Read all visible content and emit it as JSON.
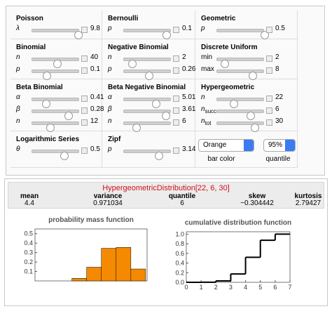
{
  "controls": [
    {
      "title": "Poisson",
      "params": [
        {
          "label": "λ",
          "value": "9.8"
        }
      ]
    },
    {
      "title": "Bernoulli",
      "params": [
        {
          "label": "p",
          "value": "0.1"
        }
      ]
    },
    {
      "title": "Geometric",
      "params": [
        {
          "label": "p",
          "value": "0.5"
        }
      ]
    },
    {
      "title": "Binomial",
      "params": [
        {
          "label": "n",
          "value": "40"
        },
        {
          "label": "p",
          "value": "0.1"
        }
      ]
    },
    {
      "title": "Negative Binomial",
      "params": [
        {
          "label": "n",
          "value": "2"
        },
        {
          "label": "p",
          "value": "0.26"
        }
      ]
    },
    {
      "title": "Discrete Uniform",
      "params": [
        {
          "label": "min",
          "value": "2"
        },
        {
          "label": "max",
          "value": "8"
        }
      ]
    },
    {
      "title": "Beta Binomial",
      "params": [
        {
          "label": "α",
          "value": "0.41"
        },
        {
          "label": "β",
          "value": "0.28"
        },
        {
          "label": "n",
          "value": "12"
        }
      ]
    },
    {
      "title": "Beta Negative Binomial",
      "params": [
        {
          "label": "α",
          "value": "5.01"
        },
        {
          "label": "β",
          "value": "3.61"
        },
        {
          "label": "n",
          "value": "6"
        }
      ]
    },
    {
      "title": "Hypergeometric",
      "params": [
        {
          "label": "n",
          "value": "22"
        },
        {
          "label": "n",
          "subscript": "succ",
          "value": "6"
        },
        {
          "label": "n",
          "subscript": "tot",
          "value": "30"
        }
      ]
    },
    {
      "title": "Logarithmic Series",
      "params": [
        {
          "label": "θ",
          "value": "0.5"
        }
      ]
    },
    {
      "title": "Zipf",
      "params": [
        {
          "label": "p",
          "value": "3.14"
        }
      ]
    }
  ],
  "menus": [
    {
      "selected": "Orange",
      "label": "bar color"
    },
    {
      "selected": "95%",
      "label": "quantile"
    }
  ],
  "result": {
    "title": "HypergeometricDistribution[22, 6, 30]",
    "stats": [
      {
        "name": "mean",
        "value": "4.4"
      },
      {
        "name": "variance",
        "value": "0.971034"
      },
      {
        "name": "quantile",
        "value": "6"
      },
      {
        "name": "skew",
        "value": "−0.304442"
      },
      {
        "name": "kurtosis",
        "value": "2.79427"
      }
    ]
  },
  "chart_data": [
    {
      "type": "bar",
      "title": "probability mass function",
      "x": [
        2,
        3,
        4,
        5,
        6
      ],
      "values": [
        0.027,
        0.145,
        0.345,
        0.355,
        0.126
      ],
      "color": "#f58a00",
      "xlim": [
        -1,
        6.6
      ],
      "ylim": [
        0,
        0.55
      ],
      "yticks": [
        0.1,
        0.2,
        0.3,
        0.4,
        0.5
      ]
    },
    {
      "type": "step",
      "title": "cumulative distribution function",
      "x": [
        0,
        1,
        2,
        3,
        4,
        5,
        6
      ],
      "values": [
        0,
        0.002,
        0.029,
        0.174,
        0.519,
        0.874,
        1.0
      ],
      "color": "#000000",
      "xlim": [
        0,
        7
      ],
      "xticks": [
        0,
        1,
        2,
        3,
        4,
        5,
        6,
        7
      ],
      "ylim": [
        0,
        1.05
      ],
      "yticks": [
        {
          "value": 0,
          "label": "0.0"
        },
        0.2,
        0.4,
        0.6,
        0.8,
        {
          "value": 1,
          "label": "1.0"
        }
      ]
    }
  ]
}
